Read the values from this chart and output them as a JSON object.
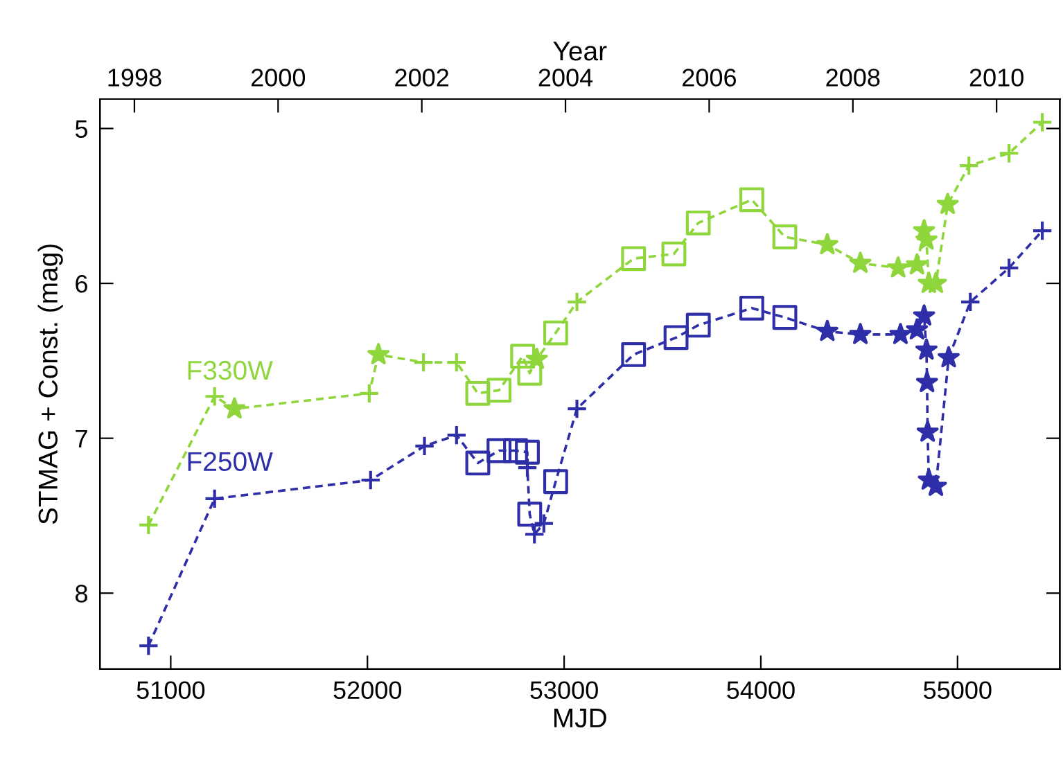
{
  "chart_data": {
    "type": "line",
    "xlabel": "MJD",
    "ylabel": "STMAG + Const. (mag)",
    "x2label": "Year",
    "xlim": [
      50640,
      55520
    ],
    "xticks": [
      51000,
      52000,
      53000,
      54000,
      55000
    ],
    "x2lim": [
      1997.52,
      2010.88
    ],
    "x2ticks": [
      1998,
      2000,
      2002,
      2004,
      2006,
      2008,
      2010
    ],
    "ylim": [
      8.49,
      4.81
    ],
    "yticks": [
      5,
      6,
      7,
      8
    ],
    "grid": false,
    "legend": false,
    "series": [
      {
        "name": "F330W",
        "color": "#8ed63c",
        "marker": "none",
        "line_style": "dashed",
        "x": [
          50887,
          51223,
          51324,
          52009,
          52056,
          52285,
          52453,
          52561,
          52669,
          52789,
          52825,
          52861,
          52957,
          53065,
          53353,
          53558,
          53682,
          53954,
          54122,
          54338,
          54506,
          54698,
          54794,
          54830,
          54842,
          54854,
          54890,
          54950,
          55058,
          55262,
          55431
        ],
        "values": [
          7.56,
          6.73,
          6.81,
          6.71,
          6.46,
          6.51,
          6.51,
          6.71,
          6.69,
          6.47,
          6.58,
          6.49,
          6.32,
          6.12,
          5.84,
          5.81,
          5.61,
          5.46,
          5.7,
          5.75,
          5.87,
          5.9,
          5.88,
          5.66,
          5.72,
          6.0,
          6.0,
          5.49,
          5.24,
          5.16,
          4.96
        ]
      },
      {
        "name": "F250W",
        "color": "#2e2ea8",
        "marker": "none",
        "line_style": "dashed",
        "x": [
          50887,
          51223,
          52016,
          52290,
          52453,
          52561,
          52669,
          52753,
          52813,
          52813,
          52825,
          52849,
          52897,
          52957,
          53065,
          53353,
          53569,
          53682,
          53954,
          54122,
          54338,
          54506,
          54710,
          54794,
          54830,
          54842,
          54845,
          54848,
          54854,
          54890,
          54955,
          55065,
          55262,
          55431
        ],
        "values": [
          8.34,
          7.39,
          7.27,
          7.05,
          6.98,
          7.16,
          7.08,
          7.08,
          7.09,
          7.19,
          7.49,
          7.62,
          7.55,
          7.28,
          6.81,
          6.46,
          6.35,
          6.27,
          6.16,
          6.22,
          6.31,
          6.33,
          6.33,
          6.3,
          6.21,
          6.43,
          6.64,
          6.96,
          7.27,
          7.31,
          6.48,
          6.12,
          5.9,
          5.66
        ]
      },
      {
        "type": "scatter",
        "color": "#8ed63c",
        "marker": "cross",
        "x": [
          50887,
          51223,
          52009,
          52285,
          52453,
          53065,
          55058,
          55262,
          55431
        ],
        "values": [
          7.56,
          6.73,
          6.71,
          6.51,
          6.51,
          6.12,
          5.24,
          5.16,
          4.96
        ]
      },
      {
        "type": "scatter",
        "color": "#8ed63c",
        "marker": "star",
        "x": [
          51324,
          52056,
          52861,
          54338,
          54506,
          54698,
          54794,
          54830,
          54842,
          54854,
          54890,
          54950
        ],
        "values": [
          6.81,
          6.46,
          6.49,
          5.75,
          5.87,
          5.9,
          5.88,
          5.66,
          5.72,
          6.0,
          6.0,
          5.49
        ]
      },
      {
        "type": "scatter",
        "color": "#8ed63c",
        "marker": "square",
        "x": [
          52561,
          52669,
          52789,
          52825,
          52957,
          53353,
          53558,
          53682,
          53954,
          54122
        ],
        "values": [
          6.71,
          6.69,
          6.47,
          6.58,
          6.32,
          5.84,
          5.81,
          5.61,
          5.46,
          5.7
        ]
      },
      {
        "type": "scatter",
        "color": "#2e2ea8",
        "marker": "cross",
        "x": [
          50887,
          51223,
          52016,
          52290,
          52453,
          52813,
          52849,
          52897,
          53065,
          55065,
          55262,
          55431
        ],
        "values": [
          8.34,
          7.39,
          7.27,
          7.05,
          6.98,
          7.19,
          7.62,
          7.55,
          6.81,
          6.12,
          5.9,
          5.66
        ]
      },
      {
        "type": "scatter",
        "color": "#2e2ea8",
        "marker": "square",
        "x": [
          52561,
          52669,
          52753,
          52813,
          52825,
          52957,
          53353,
          53569,
          53682,
          53954,
          54122
        ],
        "values": [
          7.16,
          7.08,
          7.08,
          7.09,
          7.49,
          7.28,
          6.46,
          6.35,
          6.27,
          6.16,
          6.22
        ]
      },
      {
        "type": "scatter",
        "color": "#2e2ea8",
        "marker": "star",
        "x": [
          54338,
          54506,
          54710,
          54794,
          54830,
          54842,
          54845,
          54848,
          54854,
          54890,
          54955
        ],
        "values": [
          6.31,
          6.33,
          6.33,
          6.3,
          6.21,
          6.43,
          6.64,
          6.96,
          7.27,
          7.31,
          6.48
        ]
      }
    ]
  }
}
